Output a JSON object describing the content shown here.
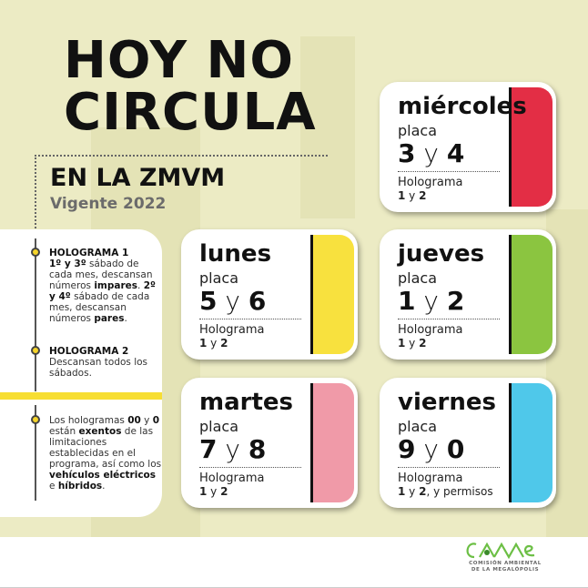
{
  "title": {
    "line1": "HOY NO",
    "line2": "CIRCULA"
  },
  "subtitle": "EN LA ZMVM",
  "validity": "Vigente 2022",
  "panel": {
    "holo1_title": "HOLOGRAMA 1",
    "holo1_a_bold": "1º y 3º",
    "holo1_a": " sábado de cada mes, descansan números ",
    "holo1_a_bold2": "impares",
    "holo1_a_end": ".",
    "holo1_b_bold": "2º y 4º",
    "holo1_b": " sábado de cada mes, descansan números ",
    "holo1_b_bold2": "pares",
    "holo1_b_end": ".",
    "holo2_title": "HOLOGRAMA 2",
    "holo2_text": "Descansan todos los sábados.",
    "ex_1": "Los hologramas ",
    "ex_b1": "00",
    "ex_2": " y ",
    "ex_b2": "0",
    "ex_3": " están ",
    "ex_b3": "exentos",
    "ex_4": " de las limitaciones establecidas en el programa, así como los ",
    "ex_b4": "vehículos eléctricos",
    "ex_5": " e ",
    "ex_b5": "híbridos",
    "ex_6": "."
  },
  "cards": [
    {
      "day": "miércoles",
      "placa": "placa",
      "d1": "3",
      "y": "y",
      "d2": "4",
      "holo": "Holograma",
      "holo_b1": "1",
      "holo_y": " y ",
      "holo_b2": "2",
      "holo_extra": "",
      "color": "#e32e45"
    },
    {
      "day": "lunes",
      "placa": "placa",
      "d1": "5",
      "y": "y",
      "d2": "6",
      "holo": "Holograma",
      "holo_b1": "1",
      "holo_y": " y ",
      "holo_b2": "2",
      "holo_extra": "",
      "color": "#f8e13e"
    },
    {
      "day": "jueves",
      "placa": "placa",
      "d1": "1",
      "y": "y",
      "d2": "2",
      "holo": "Holograma",
      "holo_b1": "1",
      "holo_y": " y ",
      "holo_b2": "2",
      "holo_extra": "",
      "color": "#8bc540"
    },
    {
      "day": "martes",
      "placa": "placa",
      "d1": "7",
      "y": "y",
      "d2": "8",
      "holo": "Holograma",
      "holo_b1": "1",
      "holo_y": " y ",
      "holo_b2": "2",
      "holo_extra": "",
      "color": "#f09aa8"
    },
    {
      "day": "viernes",
      "placa": "placa",
      "d1": "9",
      "y": "y",
      "d2": "0",
      "holo": "Holograma",
      "holo_b1": "1",
      "holo_y": " y ",
      "holo_b2": "2",
      "holo_extra": ", y permisos",
      "color": "#4fc8ea"
    }
  ],
  "footer": {
    "logo_text": "CAMe",
    "org_line1": "COMISIÓN AMBIENTAL",
    "org_line2": "DE LA MEGALÓPOLIS"
  }
}
